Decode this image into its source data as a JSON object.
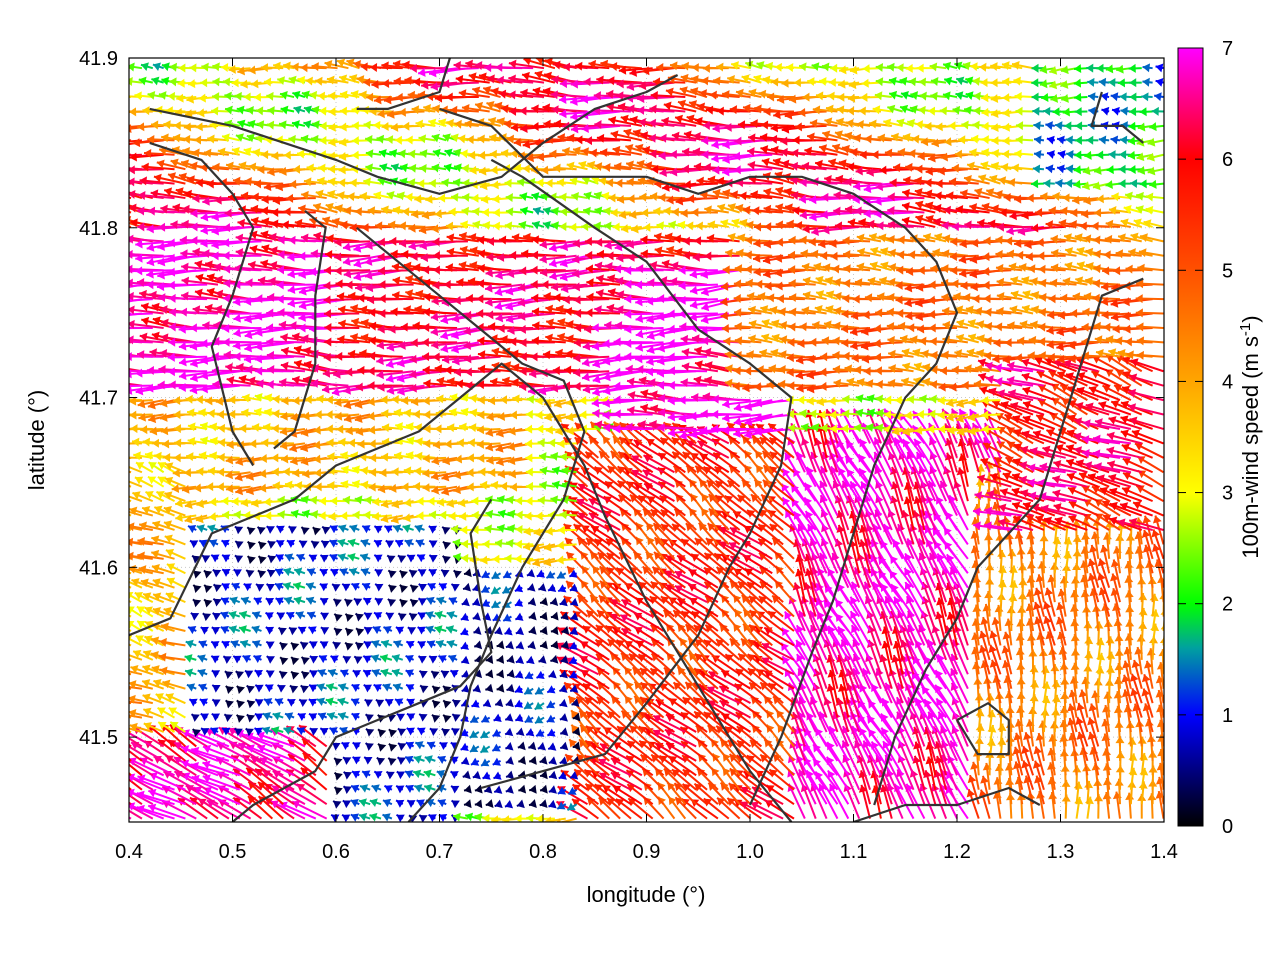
{
  "chart_data": {
    "type": "vector field",
    "xlabel": "longitude (°)",
    "ylabel": "latitude (°)",
    "colorbar_label": "100m-wind speed (m s",
    "colorbar_label_exp": "-1",
    "colorbar_label_tail": ")",
    "xlim": [
      0.4,
      1.4
    ],
    "ylim": [
      41.45,
      41.9
    ],
    "x_ticks": [
      {
        "value": 0.4,
        "label": "0.4"
      },
      {
        "value": 0.5,
        "label": "0.5"
      },
      {
        "value": 0.6,
        "label": "0.6"
      },
      {
        "value": 0.7,
        "label": "0.7"
      },
      {
        "value": 0.8,
        "label": "0.8"
      },
      {
        "value": 0.9,
        "label": "0.9"
      },
      {
        "value": 1.0,
        "label": "1.0"
      },
      {
        "value": 1.1,
        "label": "1.1"
      },
      {
        "value": 1.2,
        "label": "1.2"
      },
      {
        "value": 1.3,
        "label": "1.3"
      },
      {
        "value": 1.4,
        "label": "1.4"
      }
    ],
    "y_ticks": [
      {
        "value": 41.5,
        "label": "41.5"
      },
      {
        "value": 41.6,
        "label": "41.6"
      },
      {
        "value": 41.7,
        "label": "41.7"
      },
      {
        "value": 41.8,
        "label": "41.8"
      },
      {
        "value": 41.9,
        "label": "41.9"
      }
    ],
    "colorbar": {
      "range": [
        0,
        7
      ],
      "ticks": [
        {
          "value": 0,
          "label": "0"
        },
        {
          "value": 1,
          "label": "1"
        },
        {
          "value": 2,
          "label": "2"
        },
        {
          "value": 3,
          "label": "3"
        },
        {
          "value": 4,
          "label": "4"
        },
        {
          "value": 5,
          "label": "5"
        },
        {
          "value": 6,
          "label": "6"
        },
        {
          "value": 7,
          "label": "7"
        }
      ],
      "palette": [
        {
          "value": 0.0,
          "color": "#000000"
        },
        {
          "value": 1.0,
          "color": "#0000ff"
        },
        {
          "value": 1.6,
          "color": "#00a0a0"
        },
        {
          "value": 2.0,
          "color": "#00ff00"
        },
        {
          "value": 3.0,
          "color": "#ffff00"
        },
        {
          "value": 4.0,
          "color": "#ffa500"
        },
        {
          "value": 5.0,
          "color": "#ff5000"
        },
        {
          "value": 6.0,
          "color": "#ff0000"
        },
        {
          "value": 7.0,
          "color": "#ff00ff"
        }
      ]
    },
    "wind_regions": [
      {
        "lon": [
          0.4,
          1.4
        ],
        "lat": [
          41.78,
          41.9
        ],
        "dir_deg": 175,
        "speed_from_contour": true,
        "note_speed": [
          2.5,
          6.5
        ]
      },
      {
        "lon": [
          0.4,
          0.62
        ],
        "lat": [
          41.7,
          41.8
        ],
        "dir_deg": 178,
        "speed": 6.8
      },
      {
        "lon": [
          0.62,
          1.0
        ],
        "lat": [
          41.7,
          41.8
        ],
        "dir_deg": 180,
        "speed": 6.2
      },
      {
        "lon": [
          0.88,
          1.05
        ],
        "lat": [
          41.68,
          41.78
        ],
        "dir_deg": 180,
        "speed": 7.0
      },
      {
        "lon": [
          1.0,
          1.4
        ],
        "lat": [
          41.7,
          41.8
        ],
        "dir_deg": 176,
        "speed": 4.6
      },
      {
        "lon": [
          0.4,
          0.8
        ],
        "lat": [
          41.64,
          41.7
        ],
        "dir_deg": 180,
        "speed": 3.8
      },
      {
        "lon": [
          0.46,
          0.72
        ],
        "lat": [
          41.45,
          41.63
        ],
        "dir_deg": 150,
        "speed": 0.9
      },
      {
        "lon": [
          0.72,
          0.85
        ],
        "lat": [
          41.46,
          41.6
        ],
        "dir_deg": 200,
        "speed": 0.7
      },
      {
        "lon": [
          0.4,
          0.46
        ],
        "lat": [
          41.45,
          41.66
        ],
        "dir_deg": 160,
        "speed": 3.8
      },
      {
        "lon": [
          0.84,
          1.05
        ],
        "lat": [
          41.45,
          41.68
        ],
        "dir_deg": 140,
        "speed": 5.5
      },
      {
        "lon": [
          1.05,
          1.25
        ],
        "lat": [
          41.45,
          41.68
        ],
        "dir_deg": 115,
        "speed": 6.8
      },
      {
        "lon": [
          1.22,
          1.4
        ],
        "lat": [
          41.45,
          41.65
        ],
        "dir_deg": 95,
        "speed": 4.5
      },
      {
        "lon": [
          1.25,
          1.4
        ],
        "lat": [
          41.62,
          41.72
        ],
        "dir_deg": 160,
        "speed": 6.0
      },
      {
        "lon": [
          1.28,
          1.4
        ],
        "lat": [
          41.82,
          41.9
        ],
        "dir_deg": 180,
        "speed": 1.8
      },
      {
        "lon": [
          0.4,
          0.6
        ],
        "lat": [
          41.45,
          41.5
        ],
        "dir_deg": 150,
        "speed": 6.6
      }
    ],
    "contours": [
      {
        "name": "coast-north",
        "points": [
          [
            0.42,
            41.87
          ],
          [
            0.5,
            41.86
          ],
          [
            0.55,
            41.85
          ],
          [
            0.6,
            41.84
          ],
          [
            0.64,
            41.83
          ],
          [
            0.7,
            41.82
          ],
          [
            0.76,
            41.83
          ],
          [
            0.8,
            41.85
          ],
          [
            0.85,
            41.87
          ],
          [
            0.9,
            41.88
          ],
          [
            0.93,
            41.89
          ]
        ]
      },
      {
        "name": "ridge-1",
        "points": [
          [
            0.42,
            41.85
          ],
          [
            0.47,
            41.84
          ],
          [
            0.5,
            41.82
          ],
          [
            0.52,
            41.8
          ],
          [
            0.5,
            41.76
          ],
          [
            0.48,
            41.73
          ],
          [
            0.5,
            41.68
          ],
          [
            0.52,
            41.66
          ]
        ]
      },
      {
        "name": "ridge-2",
        "points": [
          [
            0.57,
            41.81
          ],
          [
            0.59,
            41.8
          ],
          [
            0.58,
            41.76
          ],
          [
            0.58,
            41.72
          ],
          [
            0.56,
            41.68
          ],
          [
            0.54,
            41.67
          ]
        ]
      },
      {
        "name": "ridge-3",
        "points": [
          [
            0.7,
            41.87
          ],
          [
            0.75,
            41.86
          ],
          [
            0.8,
            41.83
          ],
          [
            0.85,
            41.83
          ],
          [
            0.9,
            41.83
          ],
          [
            0.95,
            41.82
          ],
          [
            1.0,
            41.83
          ],
          [
            1.05,
            41.83
          ],
          [
            1.1,
            41.82
          ],
          [
            1.15,
            41.8
          ],
          [
            1.18,
            41.78
          ],
          [
            1.2,
            41.75
          ],
          [
            1.18,
            41.72
          ],
          [
            1.15,
            41.7
          ],
          [
            1.12,
            41.66
          ],
          [
            1.1,
            41.62
          ],
          [
            1.08,
            41.58
          ],
          [
            1.06,
            41.55
          ],
          [
            1.03,
            41.5
          ],
          [
            1.0,
            41.46
          ]
        ]
      },
      {
        "name": "ridge-4",
        "points": [
          [
            0.75,
            41.84
          ],
          [
            0.78,
            41.83
          ],
          [
            0.85,
            41.8
          ],
          [
            0.9,
            41.78
          ],
          [
            0.95,
            41.74
          ],
          [
            1.0,
            41.72
          ],
          [
            1.04,
            41.7
          ],
          [
            1.03,
            41.66
          ],
          [
            1.0,
            41.62
          ],
          [
            0.98,
            41.6
          ],
          [
            0.95,
            41.56
          ],
          [
            0.9,
            41.52
          ],
          [
            0.86,
            41.49
          ],
          [
            0.8,
            41.48
          ],
          [
            0.74,
            41.47
          ]
        ]
      },
      {
        "name": "ridge-5",
        "points": [
          [
            0.62,
            41.8
          ],
          [
            0.66,
            41.78
          ],
          [
            0.7,
            41.76
          ],
          [
            0.74,
            41.74
          ],
          [
            0.78,
            41.72
          ],
          [
            0.82,
            41.71
          ],
          [
            0.84,
            41.68
          ],
          [
            0.82,
            41.64
          ],
          [
            0.78,
            41.6
          ],
          [
            0.75,
            41.56
          ],
          [
            0.73,
            41.53
          ],
          [
            0.72,
            41.5
          ],
          [
            0.7,
            41.47
          ],
          [
            0.67,
            41.45
          ]
        ]
      },
      {
        "name": "coast-south",
        "points": [
          [
            0.4,
            41.56
          ],
          [
            0.44,
            41.57
          ],
          [
            0.48,
            41.62
          ],
          [
            0.52,
            41.63
          ],
          [
            0.56,
            41.64
          ],
          [
            0.6,
            41.66
          ],
          [
            0.64,
            41.67
          ],
          [
            0.68,
            41.68
          ],
          [
            0.72,
            41.7
          ],
          [
            0.76,
            41.72
          ],
          [
            0.8,
            41.7
          ],
          [
            0.84,
            41.66
          ],
          [
            0.86,
            41.63
          ],
          [
            0.9,
            41.58
          ],
          [
            0.95,
            41.53
          ],
          [
            1.0,
            41.48
          ],
          [
            1.04,
            41.45
          ]
        ]
      },
      {
        "name": "east-ridge",
        "points": [
          [
            1.38,
            41.77
          ],
          [
            1.34,
            41.76
          ],
          [
            1.32,
            41.72
          ],
          [
            1.3,
            41.68
          ],
          [
            1.28,
            41.64
          ],
          [
            1.25,
            41.62
          ],
          [
            1.22,
            41.6
          ],
          [
            1.2,
            41.57
          ],
          [
            1.17,
            41.54
          ],
          [
            1.14,
            41.5
          ],
          [
            1.12,
            41.46
          ]
        ]
      },
      {
        "name": "se-loop",
        "points": [
          [
            1.2,
            41.51
          ],
          [
            1.23,
            41.52
          ],
          [
            1.25,
            41.51
          ],
          [
            1.25,
            41.49
          ],
          [
            1.22,
            41.49
          ],
          [
            1.2,
            41.51
          ]
        ]
      },
      {
        "name": "se-arc",
        "points": [
          [
            1.1,
            41.45
          ],
          [
            1.15,
            41.46
          ],
          [
            1.2,
            41.46
          ],
          [
            1.25,
            41.47
          ],
          [
            1.28,
            41.46
          ]
        ]
      },
      {
        "name": "ne-hook",
        "points": [
          [
            1.34,
            41.88
          ],
          [
            1.33,
            41.86
          ],
          [
            1.36,
            41.86
          ],
          [
            1.38,
            41.85
          ]
        ]
      },
      {
        "name": "nw-bay",
        "points": [
          [
            0.62,
            41.87
          ],
          [
            0.65,
            41.87
          ],
          [
            0.7,
            41.88
          ],
          [
            0.71,
            41.9
          ]
        ]
      },
      {
        "name": "inland-basin",
        "points": [
          [
            0.75,
            41.64
          ],
          [
            0.73,
            41.62
          ],
          [
            0.74,
            41.58
          ],
          [
            0.75,
            41.55
          ],
          [
            0.72,
            41.53
          ],
          [
            0.68,
            41.52
          ],
          [
            0.64,
            41.51
          ],
          [
            0.6,
            41.5
          ],
          [
            0.58,
            41.48
          ],
          [
            0.55,
            41.47
          ],
          [
            0.52,
            41.46
          ],
          [
            0.5,
            41.45
          ]
        ]
      }
    ]
  }
}
